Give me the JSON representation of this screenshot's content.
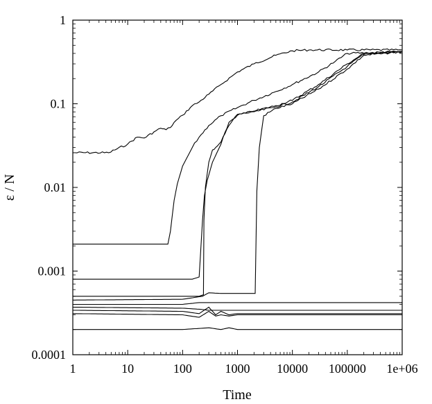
{
  "chart_data": {
    "type": "line",
    "xlabel": "Time",
    "ylabel": "ε / N",
    "xscale": "log",
    "yscale": "log",
    "xlim": [
      1,
      1000000
    ],
    "ylim": [
      0.0001,
      1
    ],
    "grid": false,
    "legend": "none",
    "x_ticks": [
      {
        "value": 1,
        "label": "1"
      },
      {
        "value": 10,
        "label": "10"
      },
      {
        "value": 100,
        "label": "100"
      },
      {
        "value": 1000,
        "label": "1000"
      },
      {
        "value": 10000,
        "label": "10000"
      },
      {
        "value": 100000,
        "label": "100000"
      },
      {
        "value": 1000000,
        "label": "1e+06"
      }
    ],
    "y_ticks": [
      {
        "value": 1,
        "label": "1"
      },
      {
        "value": 0.1,
        "label": "0.1"
      },
      {
        "value": 0.01,
        "label": "0.01"
      },
      {
        "value": 0.001,
        "label": "0.001"
      },
      {
        "value": 0.0001,
        "label": "0.0001"
      }
    ],
    "series": [
      {
        "x": [
          1,
          4.5,
          10,
          15,
          20,
          30,
          40,
          50,
          60,
          70,
          100,
          150,
          200,
          300,
          500,
          1000,
          2000,
          5000,
          10000,
          20000,
          100000,
          1000000
        ],
        "y": [
          0.026,
          0.026,
          0.033,
          0.04,
          0.039,
          0.046,
          0.051,
          0.049,
          0.052,
          0.06,
          0.073,
          0.095,
          0.105,
          0.13,
          0.17,
          0.24,
          0.3,
          0.38,
          0.43,
          0.44,
          0.44,
          0.44
        ]
      },
      {
        "x": [
          1,
          54,
          60,
          70,
          80,
          100,
          150,
          200,
          300,
          500,
          1000,
          2000,
          5000,
          10000,
          30000,
          60000,
          100000,
          1000000
        ],
        "y": [
          0.0021,
          0.0021,
          0.003,
          0.007,
          0.011,
          0.018,
          0.03,
          0.04,
          0.055,
          0.072,
          0.09,
          0.11,
          0.14,
          0.17,
          0.24,
          0.32,
          0.4,
          0.42
        ]
      },
      {
        "x": [
          1,
          150,
          200,
          230,
          250,
          280,
          350,
          500,
          700,
          1000,
          2000,
          5000,
          10000,
          30000,
          100000,
          200000,
          1000000
        ],
        "y": [
          0.0008,
          0.0008,
          0.00085,
          0.004,
          0.008,
          0.012,
          0.02,
          0.033,
          0.06,
          0.073,
          0.082,
          0.095,
          0.11,
          0.17,
          0.3,
          0.4,
          0.42
        ]
      },
      {
        "x": [
          1,
          200,
          240,
          245,
          260,
          300,
          350,
          400,
          500,
          700,
          1000,
          2000,
          5000,
          10000,
          30000,
          100000,
          200000,
          1000000
        ],
        "y": [
          0.0005,
          0.0005,
          0.00052,
          0.004,
          0.01,
          0.02,
          0.028,
          0.03,
          0.035,
          0.055,
          0.075,
          0.08,
          0.092,
          0.105,
          0.16,
          0.28,
          0.39,
          0.42
        ]
      },
      {
        "x": [
          1,
          100,
          230,
          300,
          500,
          1000,
          2100,
          2250,
          2500,
          3000,
          5000,
          10000,
          30000,
          100000,
          200000,
          1000000
        ],
        "y": [
          0.00045,
          0.00046,
          0.0005,
          0.00055,
          0.00054,
          0.00054,
          0.00054,
          0.009,
          0.03,
          0.072,
          0.088,
          0.1,
          0.15,
          0.26,
          0.38,
          0.42
        ]
      },
      {
        "x": [
          1,
          100,
          200,
          1000000
        ],
        "y": [
          0.0004,
          0.0004,
          0.00042,
          0.00042
        ]
      },
      {
        "x": [
          1,
          100,
          200,
          300,
          500,
          700,
          1000,
          1000000
        ],
        "y": [
          0.00037,
          0.00036,
          0.00035,
          0.00034,
          0.00034,
          0.00034,
          0.00034,
          0.00034
        ]
      },
      {
        "x": [
          1,
          100,
          200,
          300,
          400,
          500,
          700,
          1000,
          1000000
        ],
        "y": [
          0.00034,
          0.00033,
          0.00031,
          0.00037,
          0.0003,
          0.00033,
          0.0003,
          0.00031,
          0.00031
        ]
      },
      {
        "x": [
          1,
          100,
          200,
          300,
          400,
          500,
          700,
          1000,
          1000000
        ],
        "y": [
          0.00031,
          0.0003,
          0.00028,
          0.00033,
          0.00029,
          0.0003,
          0.00029,
          0.0003,
          0.0003
        ]
      },
      {
        "x": [
          1,
          100,
          300,
          500,
          700,
          1000,
          1000000
        ],
        "y": [
          0.0002,
          0.0002,
          0.00021,
          0.0002,
          0.00021,
          0.0002,
          0.0002
        ]
      }
    ]
  }
}
